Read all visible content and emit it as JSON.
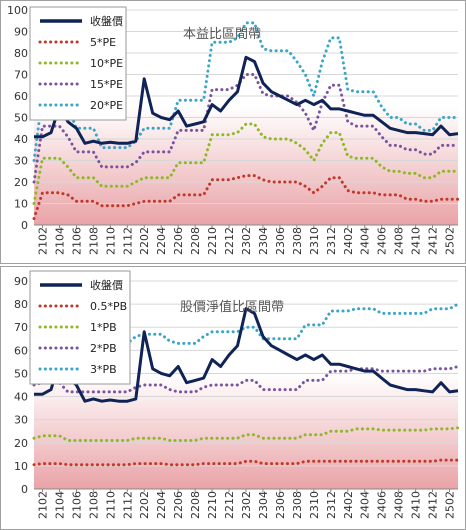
{
  "colors": {
    "price": "#0f2357",
    "red": "#c0392b",
    "green": "#8db828",
    "purple": "#7a559e",
    "cyan": "#3aa6c7",
    "plot_fill_top": "#ffffff",
    "plot_fill_bottom": "#e9a3a7",
    "grid": "#d8d8d8"
  },
  "chart_data": [
    {
      "type": "line",
      "title": "本益比區間帶",
      "ylim": [
        0,
        100
      ],
      "yticks": [
        0,
        10,
        20,
        30,
        40,
        50,
        60,
        70,
        80,
        90,
        100
      ],
      "categories": [
        "2101",
        "2102",
        "2103",
        "2104",
        "2105",
        "2106",
        "2107",
        "2108",
        "2109",
        "2110",
        "2111",
        "2112",
        "2201",
        "2202",
        "2203",
        "2204",
        "2205",
        "2206",
        "2207",
        "2208",
        "2209",
        "2210",
        "2211",
        "2212",
        "2301",
        "2302",
        "2303",
        "2304",
        "2305",
        "2306",
        "2307",
        "2308",
        "2309",
        "2310",
        "2311",
        "2312",
        "2401",
        "2402",
        "2403",
        "2404",
        "2405",
        "2406",
        "2407",
        "2408",
        "2409",
        "2410",
        "2411",
        "2412",
        "2501",
        "2502",
        "2503"
      ],
      "tick_labels": [
        "2102",
        "2104",
        "2106",
        "2108",
        "2110",
        "2112",
        "2202",
        "2204",
        "2206",
        "2208",
        "2210",
        "2212",
        "2302",
        "2304",
        "2306",
        "2308",
        "2310",
        "2312",
        "2402",
        "2404",
        "2406",
        "2408",
        "2410",
        "2412",
        "2502"
      ],
      "series": [
        {
          "name": "收盤價",
          "color_key": "price",
          "style": "solid",
          "values": [
            41,
            41,
            43,
            55,
            48,
            45,
            38,
            39,
            38,
            38.5,
            38,
            38,
            39,
            68,
            52,
            50,
            49,
            53,
            46,
            47,
            48,
            56,
            53,
            58,
            62,
            78,
            76,
            66,
            62,
            60,
            58,
            56,
            58,
            56,
            58,
            54,
            54,
            53,
            52,
            51,
            51,
            48,
            45,
            44,
            43,
            43,
            42.5,
            42,
            46,
            42,
            42.5
          ]
        },
        {
          "name": "5*PE",
          "color_key": "red",
          "style": "dotted",
          "values": [
            3,
            15,
            15,
            15,
            14,
            11,
            11,
            11,
            9,
            9,
            9,
            9,
            10,
            11,
            11,
            11,
            11,
            14,
            14,
            14,
            14,
            21,
            21,
            21,
            22,
            23,
            23,
            21,
            20,
            20,
            20,
            20,
            18,
            15,
            18,
            22,
            22,
            16,
            15,
            15,
            15,
            14,
            14,
            14,
            12,
            12,
            11,
            11,
            12,
            12,
            12
          ]
        },
        {
          "name": "10*PE",
          "color_key": "green",
          "style": "dotted",
          "values": [
            10,
            31,
            31,
            31,
            27,
            22,
            22,
            22,
            18,
            18,
            18,
            18,
            20,
            22,
            22,
            22,
            22,
            29,
            29,
            29,
            29,
            42,
            42,
            42,
            43,
            47,
            47,
            41,
            40,
            40,
            40,
            38,
            35,
            30,
            38,
            43,
            43,
            32,
            31,
            31,
            31,
            27,
            25,
            25,
            24,
            24,
            22,
            22,
            25,
            25,
            25
          ]
        },
        {
          "name": "15*PE",
          "color_key": "purple",
          "style": "dotted",
          "values": [
            20,
            46,
            46,
            46,
            41,
            34,
            34,
            34,
            27,
            27,
            27,
            27,
            29,
            34,
            34,
            34,
            34,
            44,
            44,
            44,
            44,
            63,
            63,
            63,
            65,
            70,
            70,
            61,
            60,
            60,
            60,
            57,
            52,
            44,
            57,
            65,
            65,
            48,
            46,
            46,
            46,
            41,
            37,
            37,
            35,
            35,
            33,
            33,
            37,
            37,
            37
          ]
        },
        {
          "name": "20*PE",
          "color_key": "cyan",
          "style": "dotted",
          "values": [
            30,
            60,
            60,
            60,
            55,
            45,
            45,
            45,
            36,
            36,
            36,
            36,
            39,
            45,
            45,
            45,
            45,
            58,
            58,
            58,
            58,
            85,
            85,
            85,
            87,
            94,
            94,
            82,
            81,
            81,
            81,
            76,
            70,
            60,
            76,
            87,
            87,
            63,
            62,
            62,
            62,
            55,
            50,
            50,
            47,
            47,
            44,
            44,
            50,
            50,
            50
          ]
        }
      ]
    },
    {
      "type": "line",
      "title": "股價淨值比區間帶",
      "ylim": [
        0,
        90
      ],
      "yticks": [
        0,
        10,
        20,
        30,
        40,
        50,
        60,
        70,
        80,
        90
      ],
      "categories": [
        "2101",
        "2102",
        "2103",
        "2104",
        "2105",
        "2106",
        "2107",
        "2108",
        "2109",
        "2110",
        "2111",
        "2112",
        "2201",
        "2202",
        "2203",
        "2204",
        "2205",
        "2206",
        "2207",
        "2208",
        "2209",
        "2210",
        "2211",
        "2212",
        "2301",
        "2302",
        "2303",
        "2304",
        "2305",
        "2306",
        "2307",
        "2308",
        "2309",
        "2310",
        "2311",
        "2312",
        "2401",
        "2402",
        "2403",
        "2404",
        "2405",
        "2406",
        "2407",
        "2408",
        "2409",
        "2410",
        "2411",
        "2412",
        "2501",
        "2502",
        "2503"
      ],
      "tick_labels": [
        "2102",
        "2104",
        "2106",
        "2108",
        "2110",
        "2112",
        "2202",
        "2204",
        "2206",
        "2208",
        "2210",
        "2212",
        "2302",
        "2304",
        "2306",
        "2308",
        "2310",
        "2312",
        "2402",
        "2404",
        "2406",
        "2408",
        "2410",
        "2412",
        "2502"
      ],
      "series": [
        {
          "name": "收盤價",
          "color_key": "price",
          "style": "solid",
          "values": [
            41,
            41,
            43,
            55,
            48,
            45,
            38,
            39,
            38,
            38.5,
            38,
            38,
            39,
            68,
            52,
            50,
            49,
            53,
            46,
            47,
            48,
            56,
            53,
            58,
            62,
            78,
            76,
            66,
            62,
            60,
            58,
            56,
            58,
            56,
            58,
            54,
            54,
            53,
            52,
            51,
            51,
            48,
            45,
            44,
            43,
            43,
            42.5,
            42,
            46,
            42,
            42.5
          ]
        },
        {
          "name": "0.5*PB",
          "color_key": "red",
          "style": "dotted",
          "values": [
            10.5,
            11,
            11,
            11,
            10.5,
            10.5,
            10.5,
            10.5,
            10.5,
            10.5,
            10.5,
            10.5,
            11,
            11,
            11,
            11,
            10.5,
            10.5,
            10.5,
            10.5,
            11,
            11,
            11,
            11,
            11,
            12,
            12,
            11,
            11,
            11,
            11,
            11,
            12,
            12,
            12,
            12,
            12,
            12,
            12,
            12,
            12,
            12,
            12,
            12,
            12,
            12,
            12,
            12,
            12.5,
            12.5,
            12.5
          ]
        },
        {
          "name": "1*PB",
          "color_key": "green",
          "style": "dotted",
          "values": [
            22,
            23,
            23,
            23,
            21,
            21,
            21,
            21,
            21,
            21,
            21,
            21,
            22,
            22,
            22,
            22,
            21,
            21,
            21,
            21,
            22,
            22,
            22,
            22,
            22,
            23.5,
            23.5,
            22,
            22,
            22,
            22,
            22,
            23.5,
            23.5,
            23.5,
            25,
            25,
            25,
            26,
            26,
            26,
            25.5,
            25.5,
            25.5,
            25.5,
            25.5,
            25.5,
            26,
            26,
            26,
            26.5
          ]
        },
        {
          "name": "2*PB",
          "color_key": "purple",
          "style": "dotted",
          "values": [
            45,
            46,
            46,
            46,
            42,
            42,
            42,
            42,
            42,
            42,
            42,
            42,
            44,
            45,
            45,
            45,
            43,
            42,
            42,
            42,
            44,
            45,
            45,
            45,
            45,
            47,
            47,
            43,
            43,
            43,
            43,
            43,
            47,
            47,
            47,
            51,
            51,
            51,
            52,
            52,
            52,
            51,
            51,
            51,
            51,
            51,
            51,
            52,
            52,
            52,
            53
          ]
        },
        {
          "name": "3*PB",
          "color_key": "cyan",
          "style": "dotted",
          "values": [
            67,
            69,
            69,
            69,
            63,
            63,
            63,
            63,
            63,
            63,
            63,
            63,
            66,
            67,
            67,
            67,
            64,
            63,
            63,
            63,
            66,
            68,
            68,
            68,
            68,
            70,
            70,
            65,
            65,
            65,
            65,
            65,
            71,
            71,
            71,
            77,
            77,
            77,
            78,
            78,
            78,
            76,
            76,
            76,
            76,
            76,
            76,
            78,
            78,
            78,
            80
          ]
        }
      ]
    }
  ]
}
